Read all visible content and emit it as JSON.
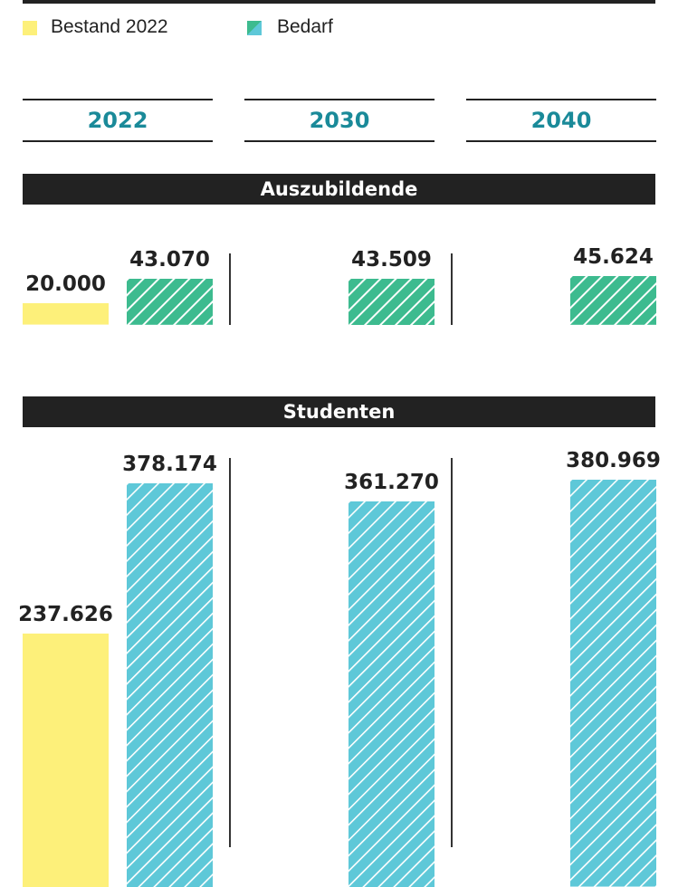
{
  "legend": [
    {
      "label": "Bestand 2022",
      "color": "#fdf07a"
    },
    {
      "label": "Bedarf",
      "colors": [
        "#3dbb8f",
        "#5ec8d8"
      ],
      "pattern": "diagonal-hatch"
    }
  ],
  "years": [
    "2022",
    "2030",
    "2040"
  ],
  "colors": {
    "bestand": "#fdf07a",
    "bedarf_azubi": "#3dbb8f",
    "bedarf_studenten": "#5ec8d8",
    "year_text": "#1a8a99"
  },
  "chart_data": [
    {
      "type": "bar",
      "title": "Auszubildende",
      "categories": [
        "2022",
        "2030",
        "2040"
      ],
      "series": [
        {
          "name": "Bestand 2022",
          "values": [
            20000,
            null,
            null
          ],
          "labels": [
            "20.000",
            null,
            null
          ]
        },
        {
          "name": "Bedarf",
          "values": [
            43070,
            43509,
            45624
          ],
          "labels": [
            "43.070",
            "43.509",
            "45.624"
          ]
        }
      ]
    },
    {
      "type": "bar",
      "title": "Studenten",
      "categories": [
        "2022",
        "2030",
        "2040"
      ],
      "series": [
        {
          "name": "Bestand 2022",
          "values": [
            237626,
            null,
            null
          ],
          "labels": [
            "237.626",
            null,
            null
          ]
        },
        {
          "name": "Bedarf",
          "values": [
            378174,
            361270,
            380969
          ],
          "labels": [
            "378.174",
            "361.270",
            "380.969"
          ]
        }
      ]
    }
  ]
}
